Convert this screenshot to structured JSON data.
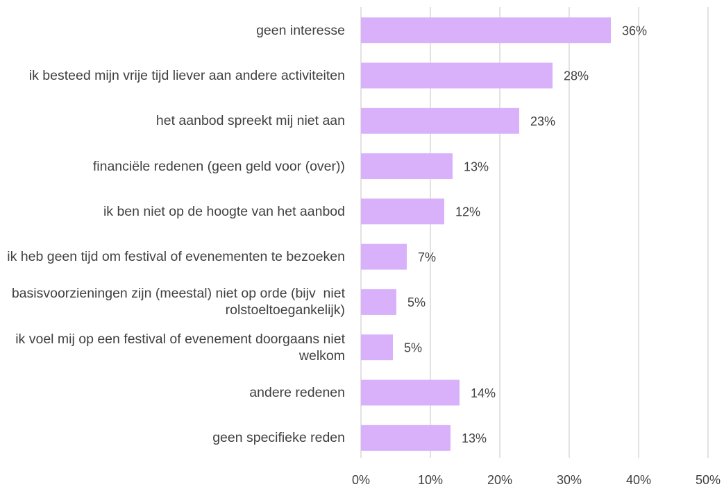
{
  "chart_data": {
    "type": "barh",
    "categories": [
      "geen interesse",
      "ik besteed mijn vrije tijd liever aan andere activiteiten",
      "het aanbod spreekt mij niet aan",
      "financiële redenen (geen geld voor (over))",
      "ik ben niet op de hoogte van het aanbod",
      "ik heb geen tijd om festival of evenementen te bezoeken",
      "basisvoorzieningen zijn (meestal) niet op orde (bijv  niet rolstoeltoegankelijk)",
      "ik voel mij op een festival of evenement doorgaans niet welkom",
      "andere redenen",
      "geen specifieke reden"
    ],
    "values": [
      36.0,
      27.6,
      22.8,
      13.2,
      12.0,
      6.6,
      5.1,
      4.6,
      14.2,
      12.9
    ],
    "value_labels": [
      "36%",
      "28%",
      "23%",
      "13%",
      "12%",
      "7%",
      "5%",
      "5%",
      "14%",
      "13%"
    ],
    "color": "#d9b1fb",
    "xlim": [
      0,
      50
    ],
    "xticks": [
      {
        "value": 0,
        "label": "0%"
      },
      {
        "value": 10,
        "label": "10%"
      },
      {
        "value": 20,
        "label": "20%"
      },
      {
        "value": 30,
        "label": "30%"
      },
      {
        "value": 40,
        "label": "40%"
      },
      {
        "value": 50,
        "label": "50%"
      }
    ],
    "grid": true
  }
}
